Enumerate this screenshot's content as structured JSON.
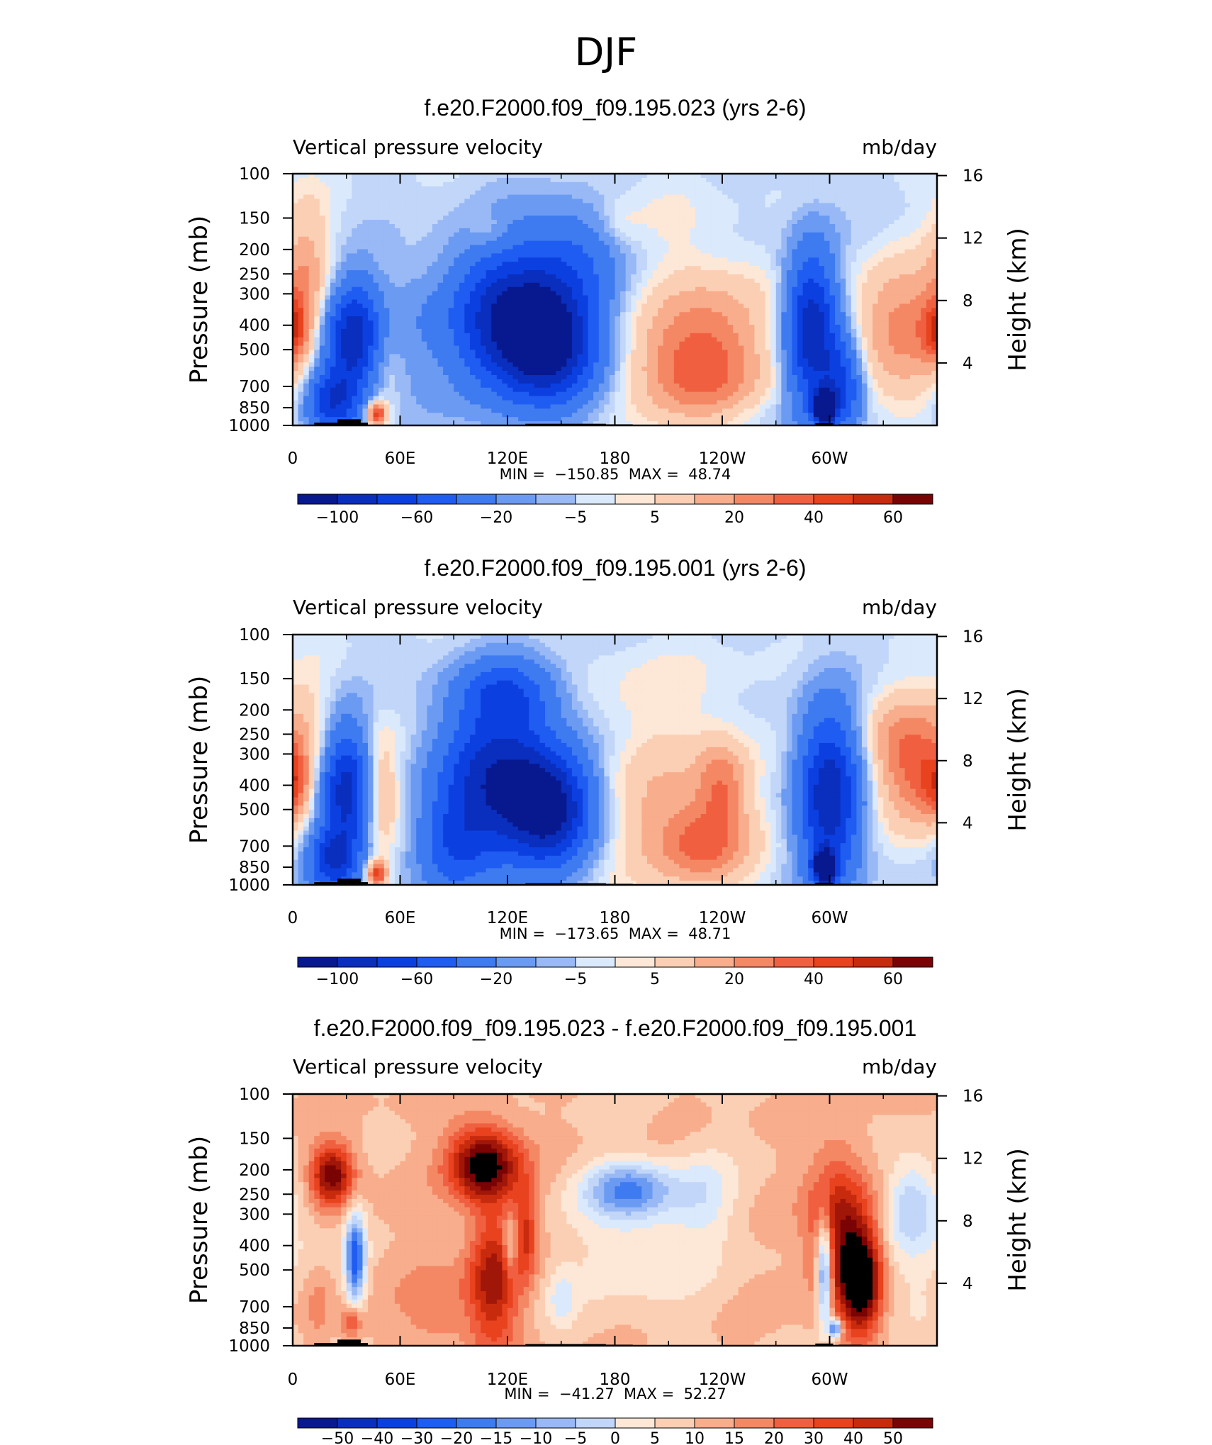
{
  "figure_title": "DJF",
  "colors": {
    "blues": [
      "#08188f",
      "#0a2ebd",
      "#0c3fe0",
      "#1f5cf2",
      "#3e7af0",
      "#6b9af2",
      "#98b9f5",
      "#c1d6f8",
      "#dbe9fc"
    ],
    "reds": [
      "#fde7d6",
      "#fbcfb4",
      "#f8ad8c",
      "#f48865",
      "#f06040",
      "#e8421f",
      "#c82a0e",
      "#a01609",
      "#7a0304"
    ],
    "land": "#000000"
  },
  "chart_data": [
    {
      "type": "heatmap",
      "title": "f.e20.F2000.f09_f09.195.023 (yrs 2-6)",
      "left_label": "Vertical pressure velocity",
      "right_label": "mb/day",
      "ylabel": "Pressure (mb)",
      "y2label": "Height (km)",
      "x_ticks": [
        "0",
        "60E",
        "120E",
        "180",
        "120W",
        "60W"
      ],
      "y_ticks": [
        "100",
        "150",
        "200",
        "250",
        "300",
        "400",
        "500",
        "700",
        "850",
        "1000"
      ],
      "y2_ticks": [
        "16",
        "12",
        "8",
        "4"
      ],
      "min_label": "MIN =",
      "min_value": "−150.85",
      "max_label": "MAX =",
      "max_value": "48.74",
      "colorbar_labels": [
        "−100",
        "−60",
        "−20",
        "−5",
        "5",
        "20",
        "40",
        "60"
      ],
      "features": [
        {
          "lon": 35,
          "p": 450,
          "rx": 12,
          "ry": 0.35,
          "v": -95
        },
        {
          "lon": 22,
          "p": 800,
          "rx": 10,
          "ry": 0.2,
          "v": -70
        },
        {
          "lon": 8,
          "p": 250,
          "rx": 10,
          "ry": 0.5,
          "v": 25
        },
        {
          "lon": 0,
          "p": 420,
          "rx": 6,
          "ry": 0.2,
          "v": 35
        },
        {
          "lon": 50,
          "p": 500,
          "rx": 8,
          "ry": 0.35,
          "v": 25
        },
        {
          "lon": 47,
          "p": 900,
          "rx": 4,
          "ry": 0.08,
          "v": 60
        },
        {
          "lon": 65,
          "p": 450,
          "rx": 14,
          "ry": 0.5,
          "v": -12
        },
        {
          "lon": 120,
          "p": 380,
          "rx": 22,
          "ry": 0.45,
          "v": -95
        },
        {
          "lon": 145,
          "p": 480,
          "rx": 18,
          "ry": 0.35,
          "v": -95
        },
        {
          "lon": 155,
          "p": 220,
          "rx": 20,
          "ry": 0.35,
          "v": -35
        },
        {
          "lon": 110,
          "p": 170,
          "rx": 8,
          "ry": 0.12,
          "v": 12
        },
        {
          "lon": 183,
          "p": 160,
          "rx": 8,
          "ry": 0.15,
          "v": 8
        },
        {
          "lon": 230,
          "p": 430,
          "rx": 26,
          "ry": 0.45,
          "v": 32
        },
        {
          "lon": 225,
          "p": 650,
          "rx": 22,
          "ry": 0.3,
          "v": 30
        },
        {
          "lon": 195,
          "p": 130,
          "rx": 25,
          "ry": 0.25,
          "v": 6
        },
        {
          "lon": 290,
          "p": 420,
          "rx": 10,
          "ry": 0.5,
          "v": -95
        },
        {
          "lon": 297,
          "p": 850,
          "rx": 4,
          "ry": 0.1,
          "v": -140
        },
        {
          "lon": 307,
          "p": 700,
          "rx": 8,
          "ry": 0.3,
          "v": -60
        },
        {
          "lon": 342,
          "p": 400,
          "rx": 20,
          "ry": 0.4,
          "v": 35
        },
        {
          "lon": 345,
          "p": 800,
          "rx": 12,
          "ry": 0.25,
          "v": 6
        },
        {
          "lon": 260,
          "p": 900,
          "rx": 20,
          "ry": 0.1,
          "v": -5
        }
      ]
    },
    {
      "type": "heatmap",
      "title": "f.e20.F2000.f09_f09.195.001 (yrs 2-6)",
      "left_label": "Vertical pressure velocity",
      "right_label": "mb/day",
      "ylabel": "Pressure (mb)",
      "y2label": "Height (km)",
      "x_ticks": [
        "0",
        "60E",
        "120E",
        "180",
        "120W",
        "60W"
      ],
      "y_ticks": [
        "100",
        "150",
        "200",
        "250",
        "300",
        "400",
        "500",
        "700",
        "850",
        "1000"
      ],
      "y2_ticks": [
        "16",
        "12",
        "8",
        "4"
      ],
      "min_label": "MIN =",
      "min_value": "−173.65",
      "max_label": "MAX =",
      "max_value": "48.71",
      "colorbar_labels": [
        "−100",
        "−60",
        "−20",
        "−5",
        "5",
        "20",
        "40",
        "60"
      ],
      "features": [
        {
          "lon": 30,
          "p": 420,
          "rx": 10,
          "ry": 0.4,
          "v": -90
        },
        {
          "lon": 22,
          "p": 800,
          "rx": 10,
          "ry": 0.2,
          "v": -70
        },
        {
          "lon": 10,
          "p": 220,
          "rx": 10,
          "ry": 0.4,
          "v": 10
        },
        {
          "lon": 0,
          "p": 400,
          "rx": 6,
          "ry": 0.2,
          "v": 30
        },
        {
          "lon": 48,
          "p": 420,
          "rx": 8,
          "ry": 0.4,
          "v": 30
        },
        {
          "lon": 47,
          "p": 900,
          "rx": 4,
          "ry": 0.08,
          "v": 60
        },
        {
          "lon": 115,
          "p": 380,
          "rx": 22,
          "ry": 0.5,
          "v": -95
        },
        {
          "lon": 145,
          "p": 500,
          "rx": 16,
          "ry": 0.35,
          "v": -95
        },
        {
          "lon": 120,
          "p": 170,
          "rx": 18,
          "ry": 0.2,
          "v": -45
        },
        {
          "lon": 90,
          "p": 700,
          "rx": 14,
          "ry": 0.35,
          "v": -40
        },
        {
          "lon": 210,
          "p": 500,
          "rx": 28,
          "ry": 0.55,
          "v": 22
        },
        {
          "lon": 230,
          "p": 700,
          "rx": 18,
          "ry": 0.25,
          "v": 32
        },
        {
          "lon": 240,
          "p": 400,
          "rx": 10,
          "ry": 0.3,
          "v": 30
        },
        {
          "lon": 200,
          "p": 150,
          "rx": 35,
          "ry": 0.3,
          "v": 6
        },
        {
          "lon": 300,
          "p": 450,
          "rx": 12,
          "ry": 0.55,
          "v": -95
        },
        {
          "lon": 297,
          "p": 850,
          "rx": 4,
          "ry": 0.1,
          "v": -140
        },
        {
          "lon": 350,
          "p": 350,
          "rx": 16,
          "ry": 0.4,
          "v": 40
        },
        {
          "lon": 335,
          "p": 250,
          "rx": 15,
          "ry": 0.3,
          "v": 15
        }
      ]
    },
    {
      "type": "heatmap",
      "title": "f.e20.F2000.f09_f09.195.023 - f.e20.F2000.f09_f09.195.001",
      "left_label": "Vertical pressure velocity",
      "right_label": "mb/day",
      "ylabel": "Pressure (mb)",
      "y2label": "Height (km)",
      "x_ticks": [
        "0",
        "60E",
        "120E",
        "180",
        "120W",
        "60W"
      ],
      "y_ticks": [
        "100",
        "150",
        "200",
        "250",
        "300",
        "400",
        "500",
        "700",
        "850",
        "1000"
      ],
      "y2_ticks": [
        "16",
        "12",
        "8",
        "4"
      ],
      "min_label": "MIN =",
      "min_value": "−41.27",
      "max_label": "MAX =",
      "max_value": "52.27",
      "colorbar_labels": [
        "−50",
        "−40",
        "−30",
        "−20",
        "−15",
        "−10",
        "−5",
        "0",
        "5",
        "10",
        "15",
        "20",
        "30",
        "40",
        "50"
      ],
      "features": [
        {
          "lon": 22,
          "p": 210,
          "rx": 9,
          "ry": 0.2,
          "v": 35
        },
        {
          "lon": 14,
          "p": 700,
          "rx": 6,
          "ry": 0.3,
          "v": 8
        },
        {
          "lon": 35,
          "p": 450,
          "rx": 4,
          "ry": 0.3,
          "v": -38
        },
        {
          "lon": 33,
          "p": 800,
          "rx": 4,
          "ry": 0.1,
          "v": 20
        },
        {
          "lon": 107,
          "p": 190,
          "rx": 14,
          "ry": 0.25,
          "v": 40
        },
        {
          "lon": 112,
          "p": 550,
          "rx": 10,
          "ry": 0.45,
          "v": 28
        },
        {
          "lon": 130,
          "p": 350,
          "rx": 5,
          "ry": 0.3,
          "v": 18
        },
        {
          "lon": 122,
          "p": 400,
          "rx": 3,
          "ry": 0.2,
          "v": -18
        },
        {
          "lon": 80,
          "p": 700,
          "rx": 14,
          "ry": 0.3,
          "v": 10
        },
        {
          "lon": 150,
          "p": 650,
          "rx": 6,
          "ry": 0.2,
          "v": -10
        },
        {
          "lon": 188,
          "p": 240,
          "rx": 18,
          "ry": 0.18,
          "v": -27
        },
        {
          "lon": 195,
          "p": 400,
          "rx": 28,
          "ry": 0.45,
          "v": -9
        },
        {
          "lon": 230,
          "p": 250,
          "rx": 12,
          "ry": 0.3,
          "v": -10
        },
        {
          "lon": 305,
          "p": 350,
          "rx": 12,
          "ry": 0.5,
          "v": 28
        },
        {
          "lon": 318,
          "p": 550,
          "rx": 8,
          "ry": 0.35,
          "v": 40
        },
        {
          "lon": 297,
          "p": 500,
          "rx": 3,
          "ry": 0.35,
          "v": -40
        },
        {
          "lon": 303,
          "p": 850,
          "rx": 2.5,
          "ry": 0.06,
          "v": -38
        },
        {
          "lon": 345,
          "p": 270,
          "rx": 10,
          "ry": 0.3,
          "v": -18
        },
        {
          "lon": 340,
          "p": 500,
          "rx": 14,
          "ry": 0.4,
          "v": -6
        },
        {
          "lon": 5,
          "p": 300,
          "rx": 10,
          "ry": 0.5,
          "v": -4
        }
      ]
    }
  ]
}
